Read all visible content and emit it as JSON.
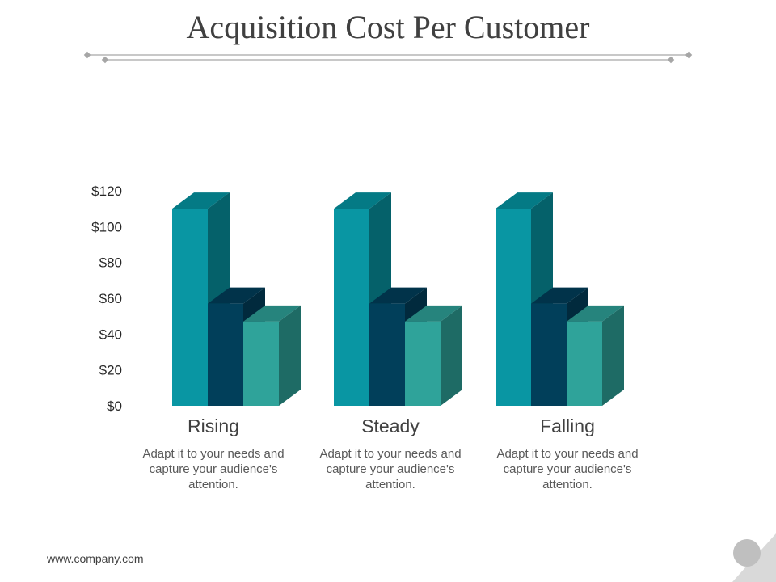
{
  "slide": {
    "title": "Acquisition Cost Per Customer",
    "footer": "www.company.com"
  },
  "colors": {
    "series_front": [
      "#0996a3",
      "#013f5a",
      "#2fa39a"
    ],
    "series_side": [
      "#05616a",
      "#012a3d",
      "#1e6b65"
    ],
    "series_top": [
      "#047a85",
      "#01334a",
      "#26847d"
    ],
    "axis_text": "#262626",
    "divider": "#a6a6a6"
  },
  "chart_data": {
    "type": "bar",
    "style": "3d-clustered-column",
    "categories": [
      "Rising",
      "Steady",
      "Falling"
    ],
    "series": [
      {
        "values": [
          110,
          110,
          110
        ]
      },
      {
        "values": [
          57,
          57,
          57
        ]
      },
      {
        "values": [
          47,
          47,
          47
        ]
      }
    ],
    "ylim": [
      0,
      120
    ],
    "y_ticks": [
      0,
      20,
      40,
      60,
      80,
      100,
      120
    ],
    "y_tick_labels": [
      "$0",
      "$20",
      "$40",
      "$60",
      "$80",
      "$100",
      "$120"
    ],
    "grid": false,
    "legend": "none",
    "descriptions": [
      "Adapt it to your needs and capture your audience's attention.",
      "Adapt it to your needs and capture your audience's attention.",
      "Adapt it to your needs and capture your audience's attention."
    ]
  }
}
